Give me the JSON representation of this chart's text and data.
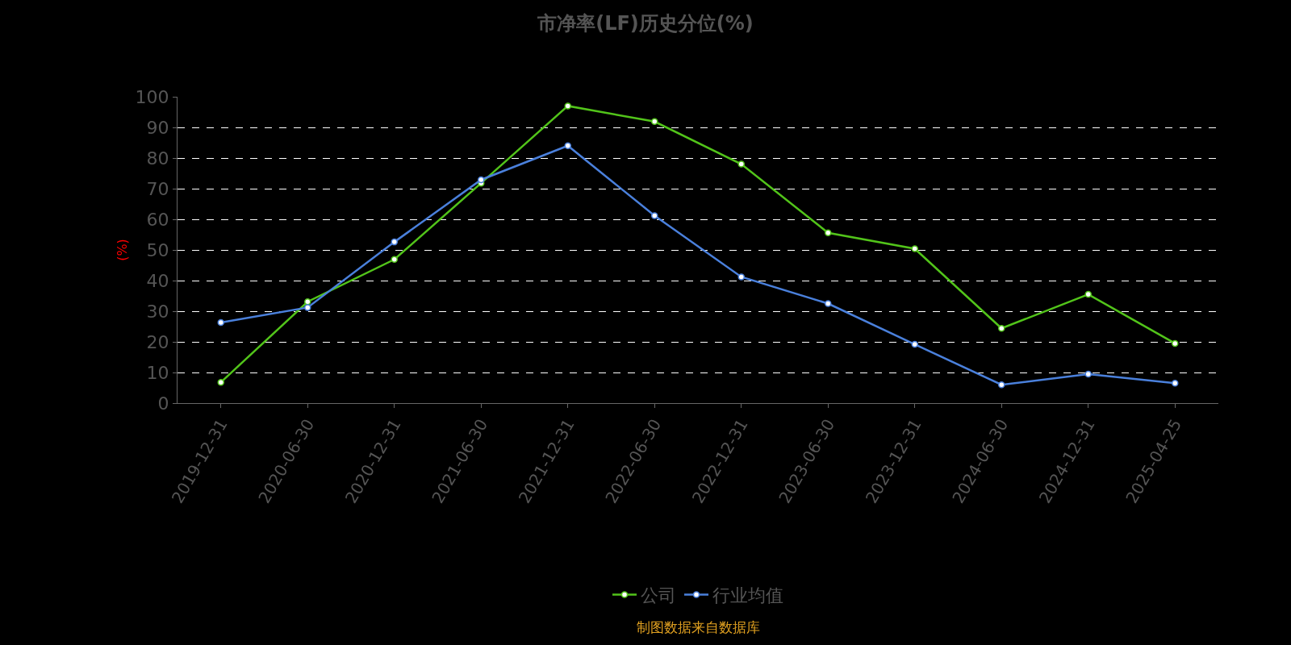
{
  "chart_data": {
    "type": "line",
    "title": "市净率(LF)历史分位(%)",
    "ylabel": "(%)",
    "categories": [
      "2019-12-31",
      "2020-06-30",
      "2020-12-31",
      "2021-06-30",
      "2021-12-31",
      "2022-06-30",
      "2022-12-31",
      "2023-06-30",
      "2023-12-31",
      "2024-06-30",
      "2024-12-31",
      "2025-04-25"
    ],
    "series": [
      {
        "name": "公司",
        "color": "#52c41a",
        "values": [
          6.8,
          33.1,
          46.9,
          71.8,
          97.0,
          91.9,
          78.0,
          55.6,
          50.4,
          24.4,
          35.5,
          19.5
        ]
      },
      {
        "name": "行业均值",
        "color": "#4a80dc",
        "values": [
          26.3,
          31.2,
          52.6,
          72.9,
          84.0,
          61.2,
          41.2,
          32.5,
          19.2,
          6.0,
          9.5,
          6.5
        ]
      }
    ],
    "ylim": [
      0,
      100
    ],
    "yticks": [
      0,
      10,
      20,
      30,
      40,
      50,
      60,
      70,
      80,
      90,
      100
    ],
    "grid": "y",
    "legend": "bottom",
    "marker": "circle",
    "line_style": "solid",
    "annotations": [
      "制图数据来自数据库"
    ]
  }
}
